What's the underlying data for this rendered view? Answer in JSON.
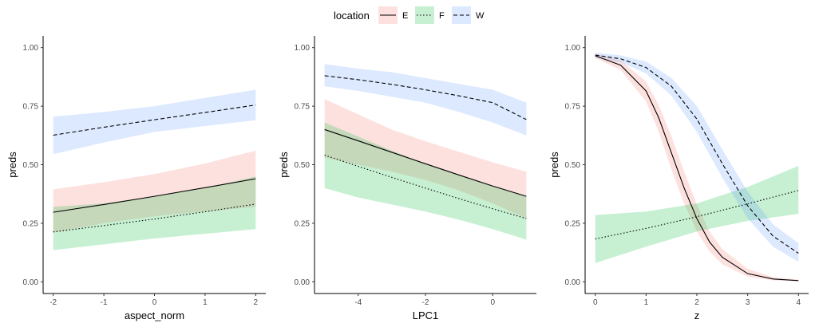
{
  "legend": {
    "title": "location",
    "placement": "top",
    "entries": [
      {
        "key": "E",
        "label": "E",
        "line_style": "solid",
        "fill": "#F8766D"
      },
      {
        "key": "F",
        "label": "F",
        "line_style": "dotted",
        "fill": "#00BA38"
      },
      {
        "key": "W",
        "label": "W",
        "line_style": "dashed",
        "fill": "#619CFF"
      }
    ]
  },
  "chart_data": [
    {
      "type": "line",
      "xlabel": "aspect_norm",
      "ylabel": "preds",
      "xlim": [
        -2.2,
        2.2
      ],
      "ylim": [
        -0.05,
        1.05
      ],
      "xticks": [
        -2,
        -1,
        0,
        1,
        2
      ],
      "yticks": [
        0.0,
        0.25,
        0.5,
        0.75,
        1.0
      ],
      "grid": false,
      "series": [
        {
          "name": "E",
          "x": [
            -2,
            -1,
            0,
            1,
            2
          ],
          "y": [
            0.297,
            0.33,
            0.365,
            0.402,
            0.44
          ],
          "lower": [
            0.21,
            0.25,
            0.28,
            0.3,
            0.32
          ],
          "upper": [
            0.395,
            0.425,
            0.46,
            0.505,
            0.56
          ]
        },
        {
          "name": "F",
          "x": [
            -2,
            -1,
            0,
            1,
            2
          ],
          "y": [
            0.213,
            0.24,
            0.268,
            0.299,
            0.332
          ],
          "lower": [
            0.135,
            0.16,
            0.185,
            0.205,
            0.225
          ],
          "upper": [
            0.32,
            0.335,
            0.365,
            0.4,
            0.45
          ]
        },
        {
          "name": "W",
          "x": [
            -2,
            -1,
            0,
            1,
            2
          ],
          "y": [
            0.626,
            0.66,
            0.692,
            0.723,
            0.755
          ],
          "lower": [
            0.545,
            0.595,
            0.64,
            0.665,
            0.69
          ],
          "upper": [
            0.705,
            0.725,
            0.75,
            0.785,
            0.82
          ]
        }
      ]
    },
    {
      "type": "line",
      "xlabel": "LPC1",
      "ylabel": "preds",
      "xlim": [
        -5.3,
        1.3
      ],
      "ylim": [
        -0.05,
        1.05
      ],
      "xticks": [
        -4,
        -2,
        0
      ],
      "yticks": [
        0.0,
        0.25,
        0.5,
        0.75,
        1.0
      ],
      "grid": false,
      "series": [
        {
          "name": "E",
          "x": [
            -5,
            -4,
            -3,
            -2,
            -1,
            0,
            1
          ],
          "y": [
            0.65,
            0.602,
            0.553,
            0.504,
            0.456,
            0.409,
            0.365
          ],
          "lower": [
            0.53,
            0.5,
            0.47,
            0.435,
            0.39,
            0.335,
            0.27
          ],
          "upper": [
            0.78,
            0.715,
            0.65,
            0.6,
            0.555,
            0.51,
            0.47
          ]
        },
        {
          "name": "F",
          "x": [
            -5,
            -4,
            -3,
            -2,
            -1,
            0,
            1
          ],
          "y": [
            0.541,
            0.493,
            0.446,
            0.4,
            0.355,
            0.312,
            0.27
          ],
          "lower": [
            0.4,
            0.36,
            0.33,
            0.3,
            0.265,
            0.225,
            0.18
          ],
          "upper": [
            0.68,
            0.62,
            0.56,
            0.505,
            0.455,
            0.41,
            0.365
          ]
        },
        {
          "name": "W",
          "x": [
            -5,
            -4,
            -3,
            -2,
            -1,
            0,
            1
          ],
          "y": [
            0.88,
            0.863,
            0.843,
            0.82,
            0.794,
            0.765,
            0.693
          ],
          "lower": [
            0.835,
            0.815,
            0.79,
            0.765,
            0.725,
            0.68,
            0.625
          ],
          "upper": [
            0.93,
            0.91,
            0.895,
            0.87,
            0.845,
            0.82,
            0.765
          ]
        }
      ]
    },
    {
      "type": "line",
      "xlabel": "z",
      "ylabel": "preds",
      "xlim": [
        -0.2,
        4.2
      ],
      "ylim": [
        -0.05,
        1.05
      ],
      "xticks": [
        0,
        1,
        2,
        3,
        4
      ],
      "yticks": [
        0.0,
        0.25,
        0.5,
        0.75,
        1.0
      ],
      "grid": false,
      "series": [
        {
          "name": "E",
          "x": [
            0,
            0.5,
            1,
            1.25,
            1.5,
            1.75,
            2,
            2.25,
            2.5,
            3,
            3.5,
            4
          ],
          "y": [
            0.965,
            0.925,
            0.815,
            0.7,
            0.55,
            0.4,
            0.27,
            0.17,
            0.105,
            0.035,
            0.012,
            0.005
          ],
          "lower": [
            0.955,
            0.905,
            0.77,
            0.64,
            0.48,
            0.335,
            0.215,
            0.13,
            0.075,
            0.022,
            0.006,
            0.002
          ],
          "upper": [
            0.975,
            0.945,
            0.855,
            0.755,
            0.62,
            0.47,
            0.33,
            0.215,
            0.14,
            0.055,
            0.02,
            0.009
          ]
        },
        {
          "name": "F",
          "x": [
            0,
            1,
            2,
            3,
            4
          ],
          "y": [
            0.183,
            0.228,
            0.278,
            0.333,
            0.39
          ],
          "lower": [
            0.08,
            0.15,
            0.215,
            0.26,
            0.29
          ],
          "upper": [
            0.285,
            0.3,
            0.335,
            0.405,
            0.495
          ]
        },
        {
          "name": "W",
          "x": [
            0,
            0.5,
            1,
            1.5,
            2,
            2.5,
            3,
            3.5,
            4
          ],
          "y": [
            0.968,
            0.952,
            0.915,
            0.835,
            0.695,
            0.505,
            0.325,
            0.195,
            0.122
          ],
          "lower": [
            0.958,
            0.937,
            0.89,
            0.795,
            0.64,
            0.445,
            0.27,
            0.15,
            0.085
          ],
          "upper": [
            0.978,
            0.967,
            0.94,
            0.87,
            0.75,
            0.565,
            0.385,
            0.245,
            0.165
          ]
        }
      ]
    }
  ]
}
